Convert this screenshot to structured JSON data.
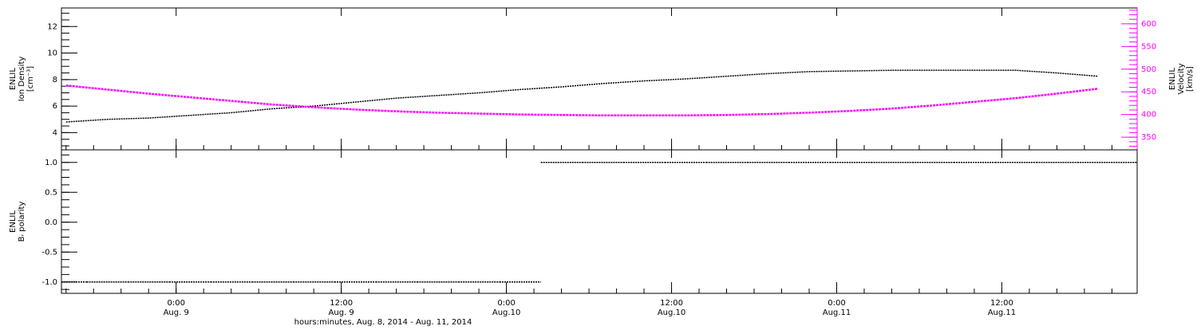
{
  "chart_data": [
    {
      "type": "line",
      "ylabel": [
        "ENLIL",
        "Ion Density",
        "[cm⁻³]"
      ],
      "y2label": [
        "ENLIL",
        "Velocity",
        "[km/s]"
      ],
      "x": [
        "2014-08-08T16:00",
        "2014-08-08T19:00",
        "2014-08-08T22:00",
        "2014-08-09T01:00",
        "2014-08-09T04:00",
        "2014-08-09T07:00",
        "2014-08-09T10:00",
        "2014-08-09T13:00",
        "2014-08-09T16:00",
        "2014-08-09T19:00",
        "2014-08-09T22:00",
        "2014-08-10T01:00",
        "2014-08-10T04:00",
        "2014-08-10T07:00",
        "2014-08-10T10:00",
        "2014-08-10T13:00",
        "2014-08-10T16:00",
        "2014-08-10T19:00",
        "2014-08-10T22:00",
        "2014-08-11T01:00",
        "2014-08-11T04:00",
        "2014-08-11T07:00",
        "2014-08-11T10:00",
        "2014-08-11T13:00",
        "2014-08-11T16:00",
        "2014-08-11T19:00"
      ],
      "series": [
        {
          "name": "Ion Density",
          "color": "#000000",
          "values": [
            4.8,
            5.0,
            5.1,
            5.3,
            5.5,
            5.8,
            6.0,
            6.3,
            6.6,
            6.8,
            7.0,
            7.25,
            7.45,
            7.7,
            7.9,
            8.05,
            8.25,
            8.45,
            8.6,
            8.65,
            8.7,
            8.7,
            8.7,
            8.7,
            8.5,
            8.25
          ]
        },
        {
          "name": "Velocity",
          "color": "#ff00ff",
          "axis": "y2",
          "values": [
            464,
            455,
            446,
            438,
            430,
            422,
            416,
            411,
            407,
            404,
            402,
            400,
            399,
            398,
            398,
            398,
            399,
            401,
            404,
            408,
            413,
            420,
            428,
            436,
            446,
            457
          ]
        }
      ],
      "xlim": [
        "2014-08-08T15:40",
        "2014-08-11T21:50"
      ],
      "ylim": [
        2.7,
        13.4
      ],
      "yticks": [
        4,
        6,
        8,
        10,
        12
      ],
      "y2lim": [
        322,
        635
      ],
      "y2ticks": [
        350,
        400,
        450,
        500,
        550,
        600
      ],
      "y2color": "#ff00ff"
    },
    {
      "type": "step",
      "ylabel": [
        "ENLIL",
        "Bᵣ polarity"
      ],
      "x": [
        "2014-08-08T16:00",
        "2014-08-08T19:00",
        "2014-08-08T22:00",
        "2014-08-09T01:00",
        "2014-08-09T04:00",
        "2014-08-09T07:00",
        "2014-08-09T10:00",
        "2014-08-09T13:00",
        "2014-08-09T16:00",
        "2014-08-09T19:00",
        "2014-08-09T22:00",
        "2014-08-10T01:00",
        "2014-08-10T04:00",
        "2014-08-10T07:00",
        "2014-08-10T10:00",
        "2014-08-10T13:00",
        "2014-08-10T16:00",
        "2014-08-10T19:00",
        "2014-08-10T22:00",
        "2014-08-11T01:00",
        "2014-08-11T04:00",
        "2014-08-11T07:00",
        "2014-08-11T10:00",
        "2014-08-11T13:00",
        "2014-08-11T16:00",
        "2014-08-11T19:00"
      ],
      "series": [
        {
          "name": "Br polarity",
          "color": "#000000",
          "values": [
            -1,
            -1,
            -1,
            -1,
            -1,
            -1,
            -1,
            -1,
            -1,
            -1,
            -1,
            -1,
            1,
            1,
            1,
            1,
            1,
            1,
            1,
            1,
            1,
            1,
            1,
            1,
            1,
            1
          ]
        }
      ],
      "xlim": [
        "2014-08-08T15:40",
        "2014-08-11T21:50"
      ],
      "ylim": [
        -1.19,
        1.21
      ],
      "yticks": [
        {
          "value": -1,
          "label": "-1.0"
        },
        -0.5,
        {
          "value": 0,
          "label": "0.0"
        },
        0.5,
        {
          "value": 1,
          "label": "1.0"
        }
      ],
      "xticks": [
        {
          "value": "2014-08-09T00:00",
          "label": "0:00",
          "date": "Aug. 9"
        },
        {
          "value": "2014-08-09T12:00",
          "label": "12:00",
          "date": "Aug. 9"
        },
        {
          "value": "2014-08-10T00:00",
          "label": "0:00",
          "date": "Aug.10"
        },
        {
          "value": "2014-08-10T12:00",
          "label": "12:00",
          "date": "Aug.10"
        },
        {
          "value": "2014-08-11T00:00",
          "label": "0:00",
          "date": "Aug.11"
        },
        {
          "value": "2014-08-11T12:00",
          "label": "12:00",
          "date": "Aug.11"
        }
      ],
      "xlabel": "hours:minutes, Aug.  8, 2014 - Aug. 11, 2014"
    }
  ]
}
